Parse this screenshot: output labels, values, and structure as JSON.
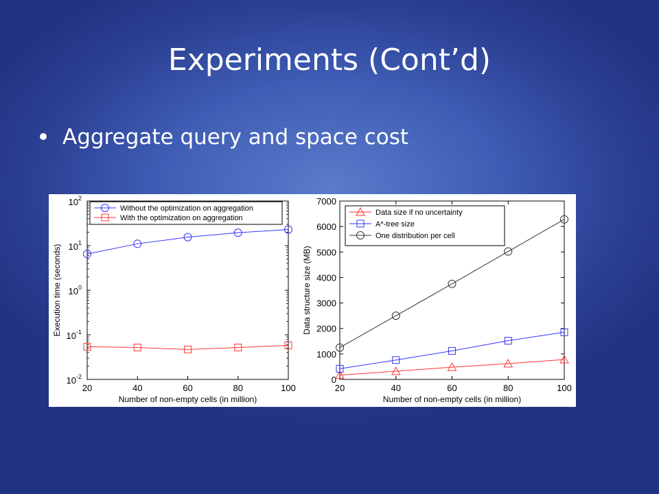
{
  "slide": {
    "title": "Experiments (Cont’d)",
    "bullet": "Aggregate query and space cost"
  },
  "chart_data": [
    {
      "type": "line",
      "xlabel": "Number of non-empty cells (in million)",
      "ylabel": "Execution time (seconds)",
      "yscale": "log",
      "ylim": [
        0.01,
        100
      ],
      "xlim": [
        20,
        100
      ],
      "x": [
        20,
        40,
        60,
        80,
        100
      ],
      "x_tick_labels": [
        "20",
        "40",
        "60",
        "80",
        "100"
      ],
      "y_tick_labels": [
        {
          "base": "10",
          "exp": "2",
          "value": 100
        },
        {
          "base": "10",
          "exp": "1",
          "value": 10
        },
        {
          "base": "10",
          "exp": "0",
          "value": 1
        },
        {
          "base": "10",
          "exp": "-1",
          "value": 0.1
        },
        {
          "base": "10",
          "exp": "-2",
          "value": 0.01
        }
      ],
      "legend_position": "top",
      "series": [
        {
          "name": "Without the optimization on aggregation",
          "color": "#3333ff",
          "marker": "circle",
          "values": [
            6.5,
            11,
            15.5,
            19.5,
            23
          ]
        },
        {
          "name": "With the optimization on aggregation",
          "color": "#ff3333",
          "marker": "square",
          "values": [
            0.054,
            0.052,
            0.047,
            0.052,
            0.058
          ]
        }
      ]
    },
    {
      "type": "line",
      "xlabel": "Number of non-empty cells (in million)",
      "ylabel": "Data structure size (MB)",
      "ylim": [
        0,
        7000
      ],
      "xlim": [
        20,
        100
      ],
      "x": [
        20,
        40,
        60,
        80,
        100
      ],
      "x_tick_labels": [
        "20",
        "40",
        "60",
        "80",
        "100"
      ],
      "y_tick_labels": [
        "0",
        "1000",
        "2000",
        "3000",
        "4000",
        "5000",
        "6000",
        "7000"
      ],
      "legend_position": "top-left",
      "series": [
        {
          "name": "Data size if no uncertainty",
          "color": "#ff3333",
          "marker": "triangle",
          "values": [
            170,
            320,
            480,
            620,
            780
          ]
        },
        {
          "name": "A*-tree size",
          "color": "#3333ff",
          "marker": "square",
          "values": [
            420,
            760,
            1120,
            1520,
            1850
          ]
        },
        {
          "name": "One distribution per cell",
          "color": "#333333",
          "marker": "circle",
          "values": [
            1250,
            2500,
            3750,
            5020,
            6280
          ]
        }
      ]
    }
  ]
}
